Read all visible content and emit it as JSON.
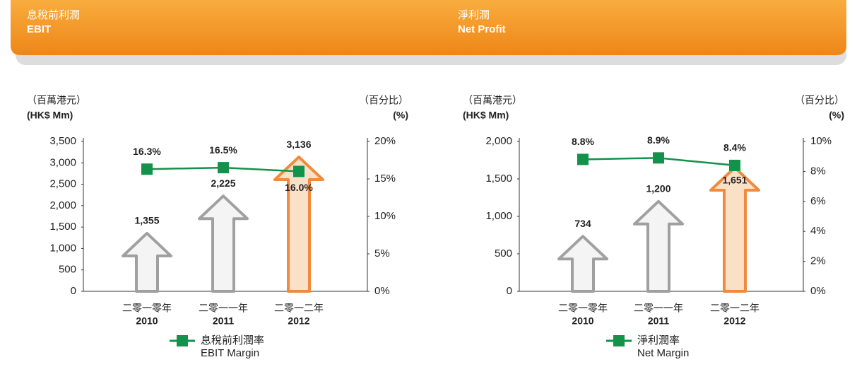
{
  "chart_data": [
    {
      "type": "bar",
      "title": "息稅前利潤",
      "subtitle": "EBIT",
      "y_label": "（百萬港元）",
      "y_label_en": "(HK$ Mm)",
      "y2_label": "（百分比）",
      "y2_label_en": "(%)",
      "categories": [
        "二零一零年",
        "二零一一年",
        "二零一二年"
      ],
      "categories_en": [
        "2010",
        "2011",
        "2012"
      ],
      "ylim": [
        0,
        3500
      ],
      "yticks": [
        0,
        500,
        {
          "value": 1000,
          "label": "1,000"
        },
        {
          "value": 1500,
          "label": "1,500"
        },
        {
          "value": 2000,
          "label": "2,000"
        },
        {
          "value": 2500,
          "label": "2,500"
        },
        {
          "value": 3000,
          "label": "3,000"
        },
        {
          "value": 3500,
          "label": "3,500"
        }
      ],
      "y2lim": [
        0,
        20
      ],
      "y2ticks": [
        {
          "value": 0,
          "label": "0%"
        },
        {
          "value": 5,
          "label": "5%"
        },
        {
          "value": 10,
          "label": "10%"
        },
        {
          "value": 15,
          "label": "15%"
        },
        {
          "value": 20,
          "label": "20%"
        }
      ],
      "series": [
        {
          "colors": [
            "#a0a0a0",
            "#a0a0a0",
            "#f08a3c"
          ],
          "values": [
            1355,
            2225,
            3136
          ],
          "value_labels": [
            "1,355",
            "2,225",
            "3,136"
          ]
        },
        {
          "name": "息稅前利潤率",
          "name_en": "EBIT Margin",
          "color": "#12924a",
          "axis": "y2",
          "values": [
            16.3,
            16.5,
            16.0
          ],
          "value_labels": [
            "16.3%",
            "16.5%",
            "16.0%"
          ]
        }
      ]
    },
    {
      "type": "bar",
      "title": "淨利潤",
      "subtitle": "Net Profit",
      "y_label": "（百萬港元）",
      "y_label_en": "(HK$ Mm)",
      "y2_label": "（百分比）",
      "y2_label_en": "(%)",
      "categories": [
        "二零一零年",
        "二零一一年",
        "二零一二年"
      ],
      "categories_en": [
        "2010",
        "2011",
        "2012"
      ],
      "ylim": [
        0,
        2000
      ],
      "yticks": [
        0,
        500,
        {
          "value": 1000,
          "label": "1,000"
        },
        {
          "value": 1500,
          "label": "1,500"
        },
        {
          "value": 2000,
          "label": "2,000"
        }
      ],
      "y2lim": [
        0,
        10
      ],
      "y2ticks": [
        {
          "value": 0,
          "label": "0%"
        },
        {
          "value": 2,
          "label": "2%"
        },
        {
          "value": 4,
          "label": "4%"
        },
        {
          "value": 6,
          "label": "6%"
        },
        {
          "value": 8,
          "label": "8%"
        },
        {
          "value": 10,
          "label": "10%"
        }
      ],
      "series": [
        {
          "colors": [
            "#a0a0a0",
            "#a0a0a0",
            "#f08a3c"
          ],
          "values": [
            734,
            1200,
            1651
          ],
          "value_labels": [
            "734",
            "1,200",
            "1,651"
          ]
        },
        {
          "name": "淨利潤率",
          "name_en": "Net Margin",
          "color": "#12924a",
          "axis": "y2",
          "values": [
            8.8,
            8.9,
            8.4
          ],
          "value_labels": [
            "8.8%",
            "8.9%",
            "8.4%"
          ]
        }
      ]
    }
  ]
}
